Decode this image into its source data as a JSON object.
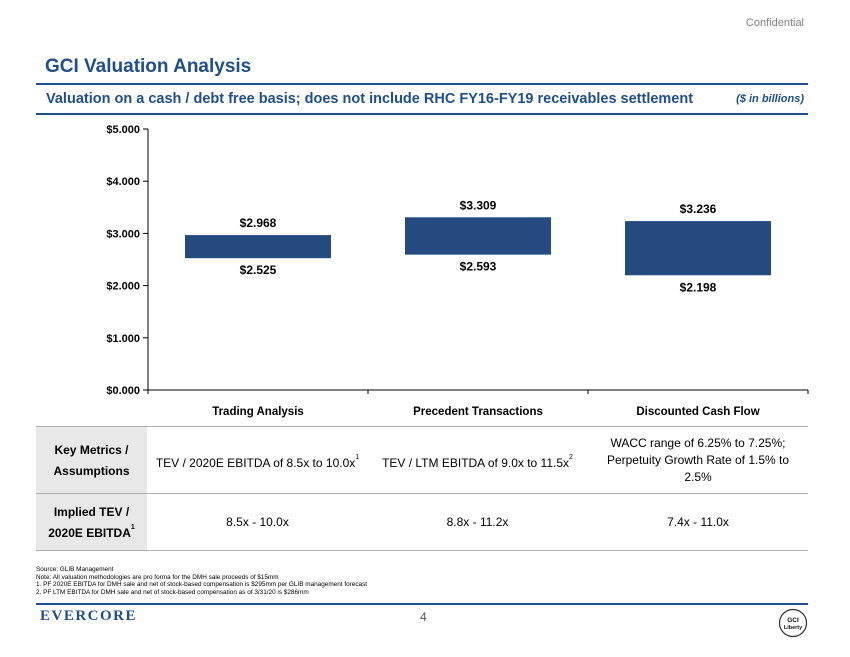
{
  "header": {
    "confidential": "Confidential",
    "title": "GCI Valuation Analysis",
    "subtitle": "Valuation on a cash / debt free basis; does not include RHC FY16-FY19 receivables settlement",
    "units": "($ in billions)"
  },
  "chart_data": {
    "type": "bar",
    "subtype": "floating-range",
    "categories": [
      "Trading Analysis",
      "Precedent Transactions",
      "Discounted Cash Flow"
    ],
    "low": [
      2.525,
      2.593,
      2.198
    ],
    "high": [
      2.968,
      3.309,
      3.236
    ],
    "low_labels": [
      "$2.525",
      "$2.593",
      "$2.198"
    ],
    "high_labels": [
      "$2.968",
      "$3.309",
      "$3.236"
    ],
    "ylim": [
      0,
      5
    ],
    "yticks": [
      0,
      1,
      2,
      3,
      4,
      5
    ],
    "ytick_labels": [
      "$0.000",
      "$1.000",
      "$2.000",
      "$3.000",
      "$4.000",
      "$5.000"
    ],
    "bar_color": "#254a80",
    "grid": false
  },
  "table": {
    "rows": [
      {
        "header": "Key Metrics / Assumptions",
        "header_sup": "",
        "cells": [
          {
            "text": "TEV / 2020E EBITDA of 8.5x to 10.0x",
            "sup": "1"
          },
          {
            "text": "TEV / LTM EBITDA of 9.0x to 11.5x",
            "sup": "2"
          },
          {
            "text": "WACC range of 6.25% to 7.25%; Perpetuity Growth Rate of 1.5% to 2.5%",
            "sup": ""
          }
        ]
      },
      {
        "header": "Implied TEV / 2020E EBITDA",
        "header_sup": "1",
        "cells": [
          {
            "text": "8.5x - 10.0x",
            "sup": ""
          },
          {
            "text": "8.8x - 11.2x",
            "sup": ""
          },
          {
            "text": "7.4x - 11.0x",
            "sup": ""
          }
        ]
      }
    ]
  },
  "footnotes": {
    "source": "Source:  GLIB Management",
    "note": "Note: All valuation methodologies are pro forma for the DMH sale proceeds of $15mm",
    "items": [
      "1.     PF 2020E EBITDA for DMH sale and net of stock-based compensation is $295mm per GLIB management forecast",
      "2.     PF LTM EBITDA for DMH sale and net of stock-based compensation as of 3/31/20 is $286mm"
    ]
  },
  "footer": {
    "brand": "EVERCORE",
    "page_number": "4",
    "logo_text_top": "GCI",
    "logo_text_bottom": "Liberty"
  },
  "colors": {
    "accent": "#1f4e8c",
    "bar": "#254a80"
  }
}
